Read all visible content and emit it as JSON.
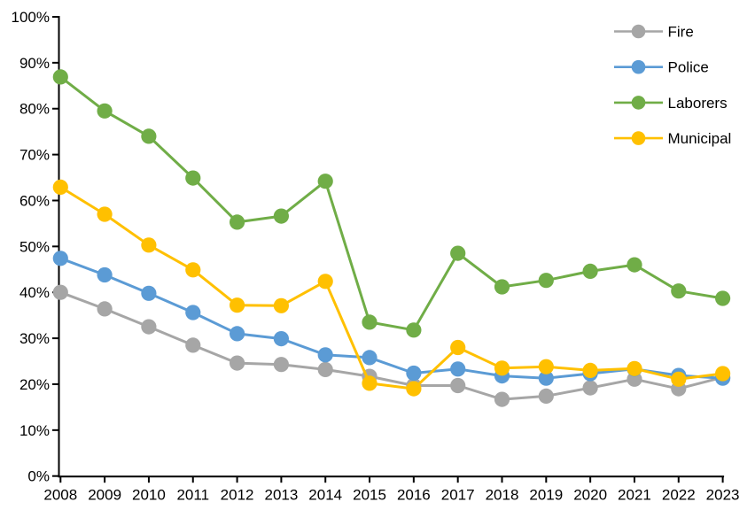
{
  "chart_data": {
    "type": "line",
    "title": "",
    "xlabel": "",
    "ylabel": "",
    "x": [
      2008,
      2009,
      2010,
      2011,
      2012,
      2013,
      2014,
      2015,
      2016,
      2017,
      2018,
      2019,
      2020,
      2021,
      2022,
      2023
    ],
    "series": [
      {
        "name": "Fire",
        "color": "#A6A6A6",
        "values": [
          40.0,
          36.4,
          32.5,
          28.5,
          24.6,
          24.3,
          23.2,
          21.7,
          19.7,
          19.7,
          16.7,
          17.4,
          19.2,
          21.1,
          19.0,
          21.5
        ]
      },
      {
        "name": "Police",
        "color": "#5B9BD5",
        "values": [
          47.4,
          43.8,
          39.8,
          35.6,
          31.0,
          29.9,
          26.4,
          25.8,
          22.4,
          23.3,
          21.8,
          21.3,
          22.3,
          23.3,
          21.9,
          21.3
        ]
      },
      {
        "name": "Laborers",
        "color": "#70AD47",
        "values": [
          86.9,
          79.5,
          74.0,
          64.9,
          55.3,
          56.6,
          64.2,
          33.5,
          31.8,
          48.5,
          41.2,
          42.6,
          44.6,
          46.0,
          40.3,
          38.7
        ]
      },
      {
        "name": "Municipal",
        "color": "#FFC000",
        "values": [
          62.9,
          57.0,
          50.3,
          44.9,
          37.2,
          37.1,
          42.4,
          20.2,
          19.0,
          28.0,
          23.5,
          23.8,
          23.0,
          23.4,
          21.1,
          22.3
        ]
      }
    ],
    "ylim": [
      0,
      100
    ],
    "ytick_step": 10,
    "ytick_labels": [
      "0%",
      "10%",
      "20%",
      "30%",
      "40%",
      "50%",
      "60%",
      "70%",
      "80%",
      "90%",
      "100%"
    ],
    "xtick_labels": [
      "2008",
      "2009",
      "2010",
      "2011",
      "2012",
      "2013",
      "2014",
      "2015",
      "2016",
      "2017",
      "2018",
      "2019",
      "2020",
      "2021",
      "2022",
      "2023"
    ],
    "legend_position": "top-right",
    "legend_entries": [
      "Fire",
      "Police",
      "Laborers",
      "Municipal"
    ],
    "grid": false,
    "axis_color": "#000000",
    "background": "#FFFFFF"
  }
}
